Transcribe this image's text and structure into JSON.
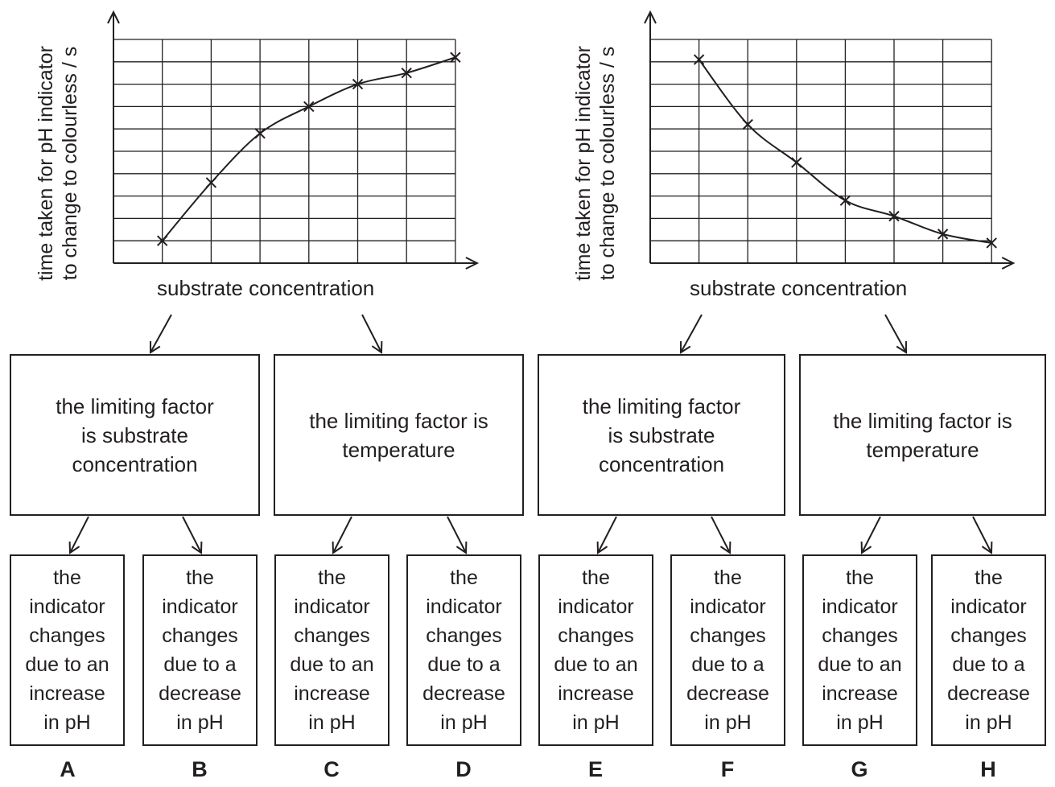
{
  "graphs": [
    {
      "ylabel_line1": "time taken for pH indicator",
      "ylabel_line2": "to change to colourless / s",
      "xlabel": "substrate concentration",
      "chart_data": {
        "type": "line",
        "trend": "increasing",
        "points_grid_units": [
          [
            1,
            1
          ],
          [
            2,
            3.6
          ],
          [
            3,
            5.8
          ],
          [
            4,
            7
          ],
          [
            5,
            8
          ],
          [
            6,
            8.5
          ],
          [
            7,
            9.2
          ]
        ]
      }
    },
    {
      "ylabel_line1": "time taken for pH indicator",
      "ylabel_line2": "to change to colourless / s",
      "xlabel": "substrate concentration",
      "chart_data": {
        "type": "line",
        "trend": "decreasing",
        "points_grid_units": [
          [
            1,
            9.1
          ],
          [
            2,
            6.2
          ],
          [
            3,
            4.5
          ],
          [
            4,
            2.8
          ],
          [
            5,
            2.1
          ],
          [
            6,
            1.3
          ],
          [
            7,
            0.9
          ]
        ]
      }
    }
  ],
  "middle_boxes": [
    {
      "line1": "the limiting factor",
      "line2": "is substrate",
      "line3": "concentration"
    },
    {
      "line1": "the limiting factor is",
      "line2": "temperature",
      "line3": ""
    },
    {
      "line1": "the limiting factor",
      "line2": "is substrate",
      "line3": "concentration"
    },
    {
      "line1": "the limiting factor is",
      "line2": "temperature",
      "line3": ""
    }
  ],
  "leaf_boxes": [
    {
      "lines": [
        "the",
        "indicator",
        "changes",
        "due to an",
        "increase",
        "in pH"
      ],
      "letter": "A"
    },
    {
      "lines": [
        "the",
        "indicator",
        "changes",
        "due to a",
        "decrease",
        "in pH"
      ],
      "letter": "B"
    },
    {
      "lines": [
        "the",
        "indicator",
        "changes",
        "due to an",
        "increase",
        "in pH"
      ],
      "letter": "C"
    },
    {
      "lines": [
        "the",
        "indicator",
        "changes",
        "due to a",
        "decrease",
        "in pH"
      ],
      "letter": "D"
    },
    {
      "lines": [
        "the",
        "indicator",
        "changes",
        "due to an",
        "increase",
        "in pH"
      ],
      "letter": "E"
    },
    {
      "lines": [
        "the",
        "indicator",
        "changes",
        "due to a",
        "decrease",
        "in pH"
      ],
      "letter": "F"
    },
    {
      "lines": [
        "the",
        "indicator",
        "changes",
        "due to an",
        "increase",
        "in pH"
      ],
      "letter": "G"
    },
    {
      "lines": [
        "the",
        "indicator",
        "changes",
        "due to a",
        "decrease",
        "in pH"
      ],
      "letter": "H"
    }
  ]
}
